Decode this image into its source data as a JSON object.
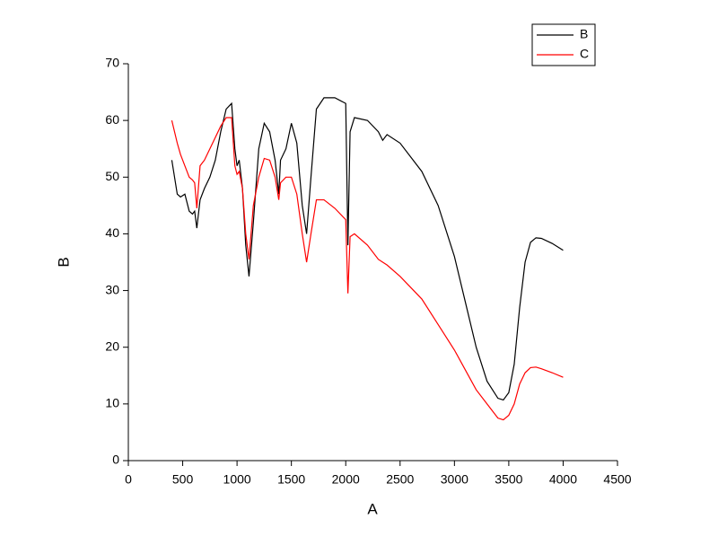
{
  "chart_data": {
    "type": "line",
    "x_label": "A",
    "y_label": "B",
    "x": [
      400,
      450,
      480,
      520,
      560,
      590,
      610,
      630,
      660,
      700,
      750,
      800,
      850,
      900,
      950,
      980,
      1000,
      1020,
      1050,
      1080,
      1110,
      1150,
      1200,
      1250,
      1300,
      1350,
      1384,
      1400,
      1450,
      1500,
      1550,
      1600,
      1640,
      1680,
      1730,
      1800,
      1900,
      2000,
      2020,
      2040,
      2080,
      2200,
      2300,
      2340,
      2380,
      2500,
      2700,
      2850,
      3000,
      3100,
      3200,
      3300,
      3400,
      3450,
      3500,
      3550,
      3600,
      3650,
      3700,
      3750,
      3800,
      3900,
      4000
    ],
    "series": [
      {
        "name": "B",
        "color": "#000000",
        "values": [
          53,
          47,
          46.5,
          47,
          44,
          43.5,
          44,
          41,
          46,
          48,
          50,
          53,
          58,
          62,
          63,
          55,
          52,
          53,
          48,
          38,
          32.5,
          42,
          55,
          59.5,
          58,
          53,
          47,
          53,
          55,
          59.5,
          56,
          45,
          40,
          50,
          62,
          64,
          64,
          63,
          38,
          58,
          60.5,
          60,
          58,
          56.5,
          57.5,
          56,
          51,
          45,
          36,
          28,
          20,
          14,
          11,
          10.7,
          12,
          17,
          27,
          35,
          38.5,
          39.3,
          39.2,
          38.3,
          37.1
        ]
      },
      {
        "name": "C",
        "color": "#ff0000",
        "values": [
          60,
          56,
          54,
          52,
          50,
          49.5,
          49,
          44.5,
          52,
          53,
          55,
          57,
          59,
          60.5,
          60.5,
          52,
          50.5,
          51,
          48,
          40,
          35.5,
          45,
          50,
          53.3,
          53,
          50,
          46,
          49,
          50,
          50,
          47,
          40,
          35,
          40,
          46,
          46,
          44.5,
          42.5,
          29.5,
          39.5,
          40,
          38,
          35.5,
          35,
          34.5,
          32.5,
          28.5,
          24,
          19.5,
          16,
          12.5,
          10,
          7.5,
          7.2,
          8,
          10,
          13.5,
          15.5,
          16.4,
          16.5,
          16.2,
          15.5,
          14.7
        ]
      }
    ],
    "xlim": [
      0,
      4500
    ],
    "xticks": [
      0,
      500,
      1000,
      1500,
      2000,
      2500,
      3000,
      3500,
      4000,
      4500
    ],
    "ylim": [
      0,
      70
    ],
    "yticks": [
      0,
      10,
      20,
      30,
      40,
      50,
      60,
      70
    ],
    "legend": "top-right"
  }
}
